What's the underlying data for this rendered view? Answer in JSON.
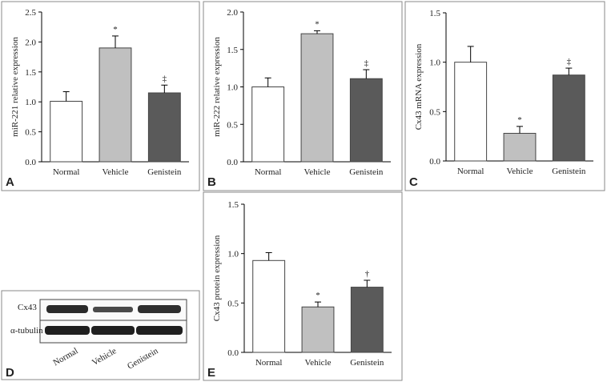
{
  "chart_data": [
    {
      "type": "bar",
      "panel": "A",
      "ylabel": "miR-221 relative expression",
      "categories": [
        "Normal",
        "Vehicle",
        "Genistein"
      ],
      "values": [
        1.01,
        1.9,
        1.15
      ],
      "errors": [
        0.16,
        0.2,
        0.13
      ],
      "markers": [
        null,
        "*",
        "‡"
      ],
      "colors": [
        "#ffffff",
        "#c0c0c0",
        "#5a5a5a"
      ],
      "ylim": [
        0,
        2.5
      ],
      "yticks": [
        {
          "value": 0,
          "label": "0.0"
        },
        0.5,
        {
          "value": 1,
          "label": "1.0"
        },
        1.5,
        {
          "value": 2,
          "label": "2.0"
        },
        2.5
      ]
    },
    {
      "type": "bar",
      "panel": "B",
      "ylabel": "miR-222 relative expression",
      "categories": [
        "Normal",
        "Vehicle",
        "Genistein"
      ],
      "values": [
        1.0,
        1.71,
        1.11
      ],
      "errors": [
        0.12,
        0.04,
        0.12
      ],
      "markers": [
        null,
        "*",
        "‡"
      ],
      "colors": [
        "#ffffff",
        "#c0c0c0",
        "#5a5a5a"
      ],
      "ylim": [
        0,
        2.0
      ],
      "yticks": [
        {
          "value": 0,
          "label": "0.0"
        },
        0.5,
        {
          "value": 1,
          "label": "1.0"
        },
        1.5,
        {
          "value": 2,
          "label": "2.0"
        }
      ]
    },
    {
      "type": "bar",
      "panel": "C",
      "ylabel": "Cx43 mRNA expression",
      "categories": [
        "Normal",
        "Vehicle",
        "Genistein"
      ],
      "values": [
        1.0,
        0.28,
        0.87
      ],
      "errors": [
        0.16,
        0.07,
        0.07
      ],
      "markers": [
        null,
        "*",
        "‡"
      ],
      "colors": [
        "#ffffff",
        "#c0c0c0",
        "#5a5a5a"
      ],
      "ylim": [
        0,
        1.5
      ],
      "yticks": [
        {
          "value": 0,
          "label": "0.0"
        },
        0.5,
        {
          "value": 1,
          "label": "1.0"
        },
        1.5
      ]
    },
    {
      "type": "bar",
      "panel": "E",
      "ylabel": "Cx43 protein expression",
      "categories": [
        "Normal",
        "Vehicle",
        "Genistein"
      ],
      "values": [
        0.93,
        0.46,
        0.66
      ],
      "errors": [
        0.08,
        0.05,
        0.07
      ],
      "markers": [
        null,
        "*",
        "†"
      ],
      "colors": [
        "#ffffff",
        "#c0c0c0",
        "#5a5a5a"
      ],
      "ylim": [
        0,
        1.5
      ],
      "yticks": [
        {
          "value": 0,
          "label": "0.0"
        },
        0.5,
        {
          "value": 1,
          "label": "1.0"
        },
        1.5
      ]
    }
  ],
  "blot": {
    "panel": "D",
    "rows": [
      "Cx43",
      "α-tubulin"
    ],
    "lanes": [
      "Normal",
      "Vehicle",
      "Genistein"
    ]
  }
}
